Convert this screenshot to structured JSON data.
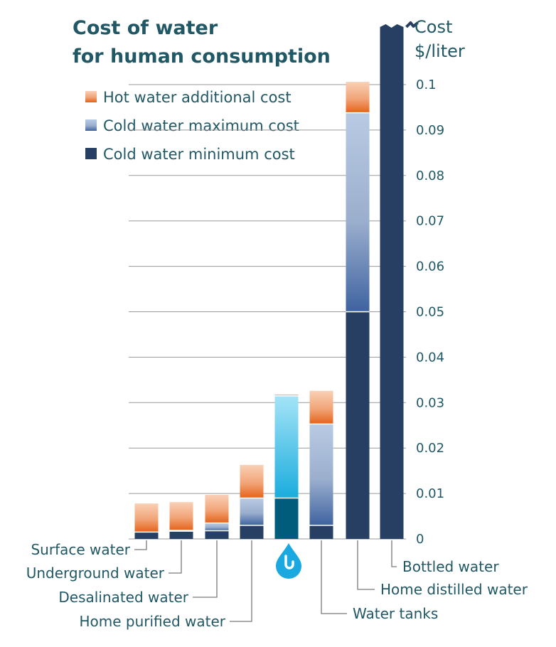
{
  "chart_data": {
    "type": "bar",
    "stacked": true,
    "title_lines": [
      "Cost of water",
      "for human consumption"
    ],
    "ylabel_lines": [
      "Cost",
      "$/liter"
    ],
    "xlabel": "",
    "ylim": [
      0,
      0.1
    ],
    "y_ticks": [
      0,
      0.01,
      0.02,
      0.03,
      0.04,
      0.05,
      0.06,
      0.07,
      0.08,
      0.09,
      0.1
    ],
    "y_tick_labels": [
      "0",
      "0.01",
      "0.02",
      "0.03",
      "0.04",
      "0.05",
      "0.06",
      "0.07",
      "0.08",
      "0.09",
      "0.1"
    ],
    "grid": true,
    "legend_position": "top-left",
    "categories": [
      "Surface water",
      "Underground water",
      "Desalinated water",
      "Home purified water",
      "",
      "Water tanks",
      "Home distilled water",
      "Bottled water"
    ],
    "series": [
      {
        "name": "Cold water minimum cost",
        "values": [
          0.0015,
          0.0017,
          0.0018,
          0.003,
          0.009,
          0.003,
          0.05,
          0.1
        ]
      },
      {
        "name": "Cold water maximum cost",
        "values": [
          0.0,
          0.0002,
          0.0017,
          0.006,
          0.0225,
          0.0223,
          0.0438,
          0.0
        ]
      },
      {
        "name": "Hot water additional cost",
        "values": [
          0.0063,
          0.0062,
          0.0062,
          0.0073,
          0.0002,
          0.0073,
          0.0068,
          0.0
        ]
      }
    ],
    "clipped_bar_index": 7,
    "highlight_bar_index": 4,
    "highlight_icon": "water-drop-icon"
  },
  "colors": {
    "title": "#215866",
    "min_cost": "#263f62",
    "max_cost_top": "#b9cbe3",
    "max_cost_bottom": "#3f63a0",
    "hot_top": "#f9d0b5",
    "hot_bottom": "#e5621a",
    "highlight_min": "#005c7a",
    "highlight_max_top": "#a5e4f7",
    "highlight_max_bottom": "#1aacdd",
    "icon": "#1aa8e0"
  }
}
